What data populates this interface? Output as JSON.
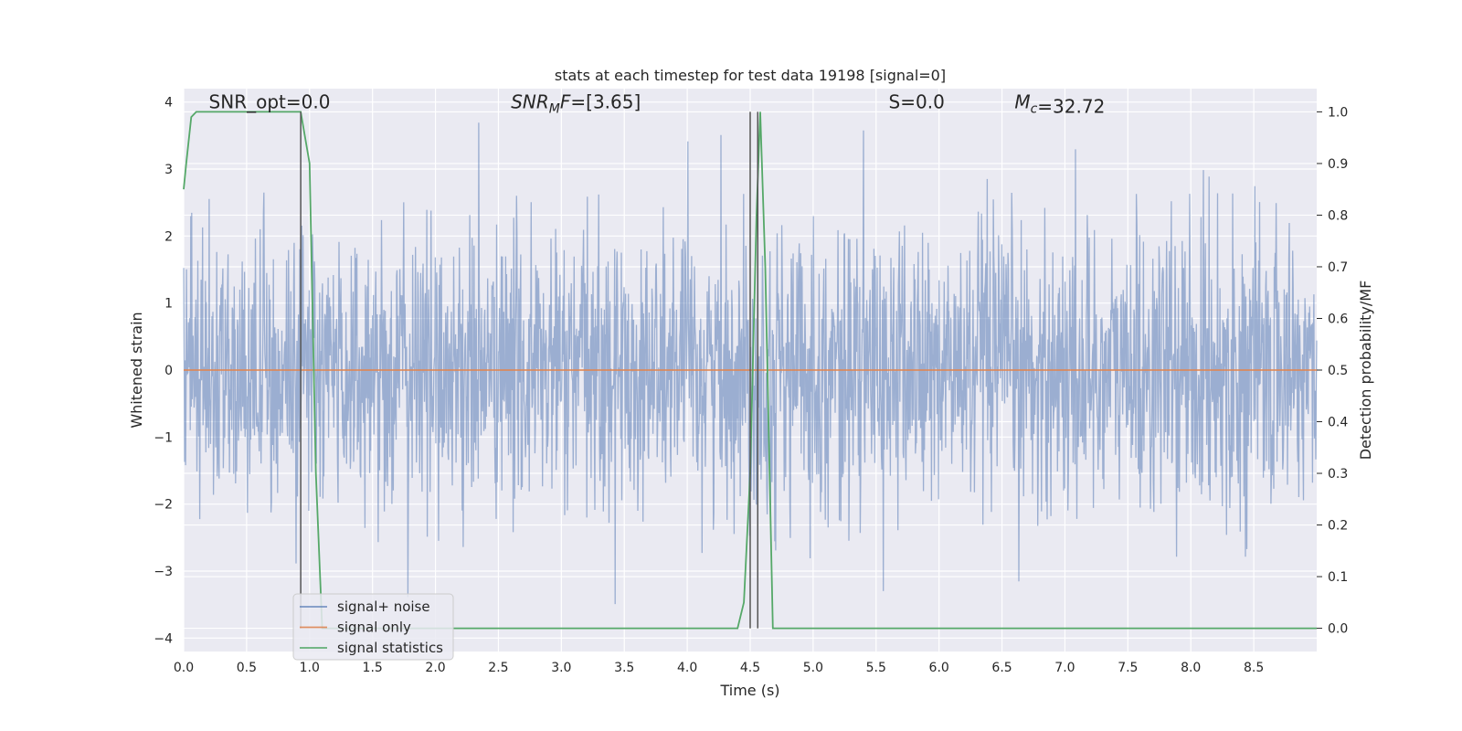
{
  "chart_data": {
    "type": "line",
    "title": "stats at each timestep for test data 19198 [signal=0]",
    "xlabel": "Time (s)",
    "ylabel": "Whitened strain",
    "ylabel_right": "Detection probability/MF",
    "xlim": [
      0,
      9.0
    ],
    "ylim": [
      -4.2,
      4.2
    ],
    "ylim_right": [
      -0.045,
      1.045
    ],
    "x_ticks": [
      0.0,
      0.5,
      1.0,
      1.5,
      2.0,
      2.5,
      3.0,
      3.5,
      4.0,
      4.5,
      5.0,
      5.5,
      6.0,
      6.5,
      7.0,
      7.5,
      8.0,
      8.5
    ],
    "x_tick_labels": [
      "0.0",
      "0.5",
      "1.0",
      "1.5",
      "2.0",
      "2.5",
      "3.0",
      "3.5",
      "4.0",
      "4.5",
      "5.0",
      "5.5",
      "6.0",
      "6.5",
      "7.0",
      "7.5",
      "8.0",
      "8.5"
    ],
    "y_ticks": [
      -4,
      -3,
      -2,
      -1,
      0,
      1,
      2,
      3,
      4
    ],
    "y_tick_labels": [
      "−4",
      "−3",
      "−2",
      "−1",
      "0",
      "1",
      "2",
      "3",
      "4"
    ],
    "y_ticks_right": [
      0.0,
      0.1,
      0.2,
      0.3,
      0.4,
      0.5,
      0.6,
      0.7,
      0.8,
      0.9,
      1.0
    ],
    "y_tick_labels_right": [
      "0.0",
      "0.1",
      "0.2",
      "0.3",
      "0.4",
      "0.5",
      "0.6",
      "0.7",
      "0.8",
      "0.9",
      "1.0"
    ],
    "grid": true,
    "noise_series": {
      "name": "signal+ noise",
      "color": "#4c72b0",
      "opacity": 0.5,
      "approx_range": [
        -4.0,
        3.9
      ],
      "approx_typical_range": [
        -1.7,
        1.5
      ]
    },
    "signal_series": {
      "name": "signal only",
      "color": "#dd8452",
      "y": 0.0
    },
    "stats_series": {
      "name": "signal statistics",
      "color": "#55a868",
      "axis": "right",
      "x": [
        0.0,
        0.02,
        0.06,
        0.1,
        0.2,
        0.5,
        0.8,
        0.93,
        1.0,
        1.05,
        1.1,
        2.0,
        3.0,
        3.9,
        4.4,
        4.45,
        4.5,
        4.55,
        4.58,
        4.62,
        4.68,
        5.0,
        6.0,
        7.0,
        8.0,
        9.0
      ],
      "y": [
        0.85,
        0.9,
        0.99,
        1.0,
        1.0,
        1.0,
        1.0,
        1.0,
        0.9,
        0.3,
        0.0,
        0.0,
        0.0,
        0.0,
        0.0,
        0.05,
        0.3,
        0.8,
        1.0,
        0.7,
        0.0,
        0.0,
        0.0,
        0.0,
        0.0,
        0.0
      ]
    },
    "vertical_lines": [
      0.93,
      4.5,
      4.56
    ],
    "vertical_lines_color": "#555555",
    "annotations": [
      {
        "id": "snr-opt",
        "text": "SNR_opt=0.0",
        "x": 0.2,
        "y": 4.0
      },
      {
        "id": "snr-mf",
        "text": "SNR_MF=[3.65]",
        "x": 2.6,
        "y": 4.0
      },
      {
        "id": "s-stat",
        "text": "S=0.0",
        "x": 5.6,
        "y": 4.0
      },
      {
        "id": "mc",
        "text": "M_c=32.72",
        "x": 6.6,
        "y": 4.0
      }
    ],
    "legend": {
      "placement": "lower-left",
      "entries": [
        {
          "label": "signal+ noise",
          "color": "#4c72b0"
        },
        {
          "label": "signal only",
          "color": "#dd8452"
        },
        {
          "label": "signal statistics",
          "color": "#55a868"
        }
      ]
    },
    "colors": {
      "plot_background": "#eaeaf2",
      "grid": "#ffffff"
    }
  }
}
